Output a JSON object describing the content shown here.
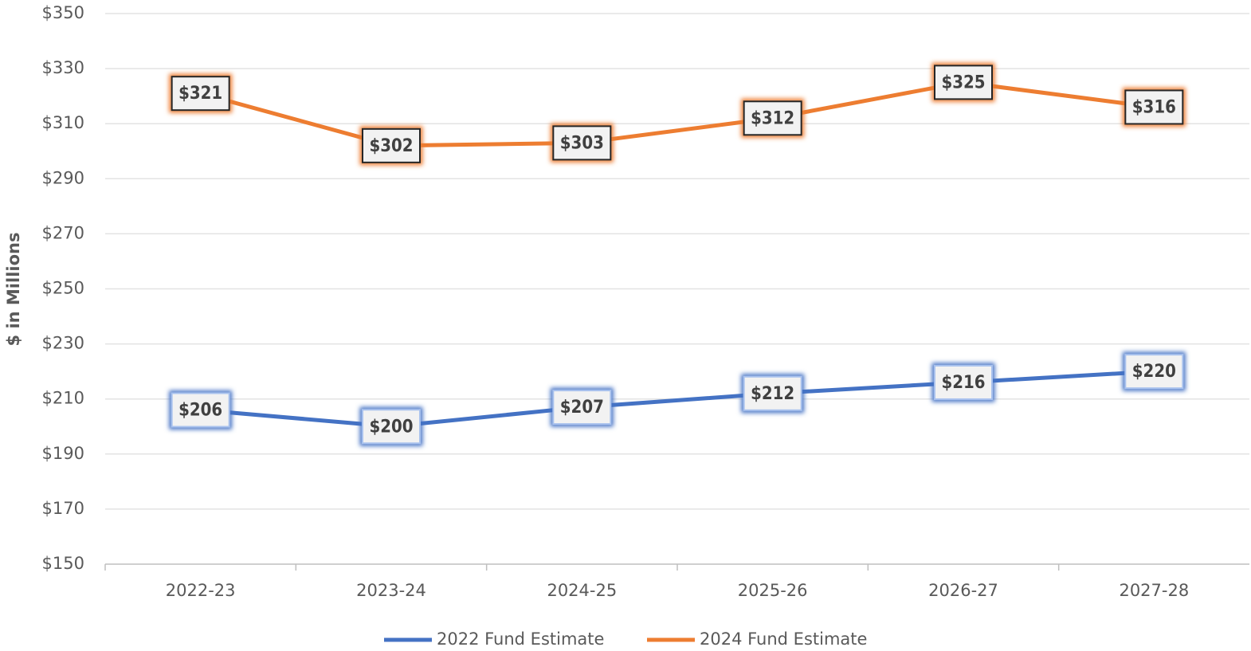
{
  "chart_data": {
    "type": "line",
    "y_label": "$ in Millions",
    "categories": [
      "2022-23",
      "2023-24",
      "2024-25",
      "2025-26",
      "2026-27",
      "2027-28"
    ],
    "series": [
      {
        "name": "2022 Fund Estimate",
        "color": "#4472c4",
        "values": [
          206,
          200,
          207,
          212,
          216,
          220
        ],
        "value_labels": [
          "$206",
          "$200",
          "$207",
          "$212",
          "$216",
          "$220"
        ]
      },
      {
        "name": "2024 Fund Estimate",
        "color": "#ed7d31",
        "values": [
          321,
          302,
          303,
          312,
          325,
          316
        ],
        "value_labels": [
          "$321",
          "$302",
          "$303",
          "$312",
          "$325",
          "$316"
        ]
      }
    ],
    "ylim": [
      150,
      350
    ],
    "yticks": [
      {
        "value": 150,
        "label": "$150"
      },
      {
        "value": 170,
        "label": "$170"
      },
      {
        "value": 190,
        "label": "$190"
      },
      {
        "value": 210,
        "label": "$210"
      },
      {
        "value": 230,
        "label": "$230"
      },
      {
        "value": 250,
        "label": "$250"
      },
      {
        "value": 270,
        "label": "$270"
      },
      {
        "value": 290,
        "label": "$290"
      },
      {
        "value": 310,
        "label": "$310"
      },
      {
        "value": 330,
        "label": "$330"
      },
      {
        "value": 350,
        "label": "$350"
      }
    ],
    "grid": true,
    "legend": "bottom"
  }
}
